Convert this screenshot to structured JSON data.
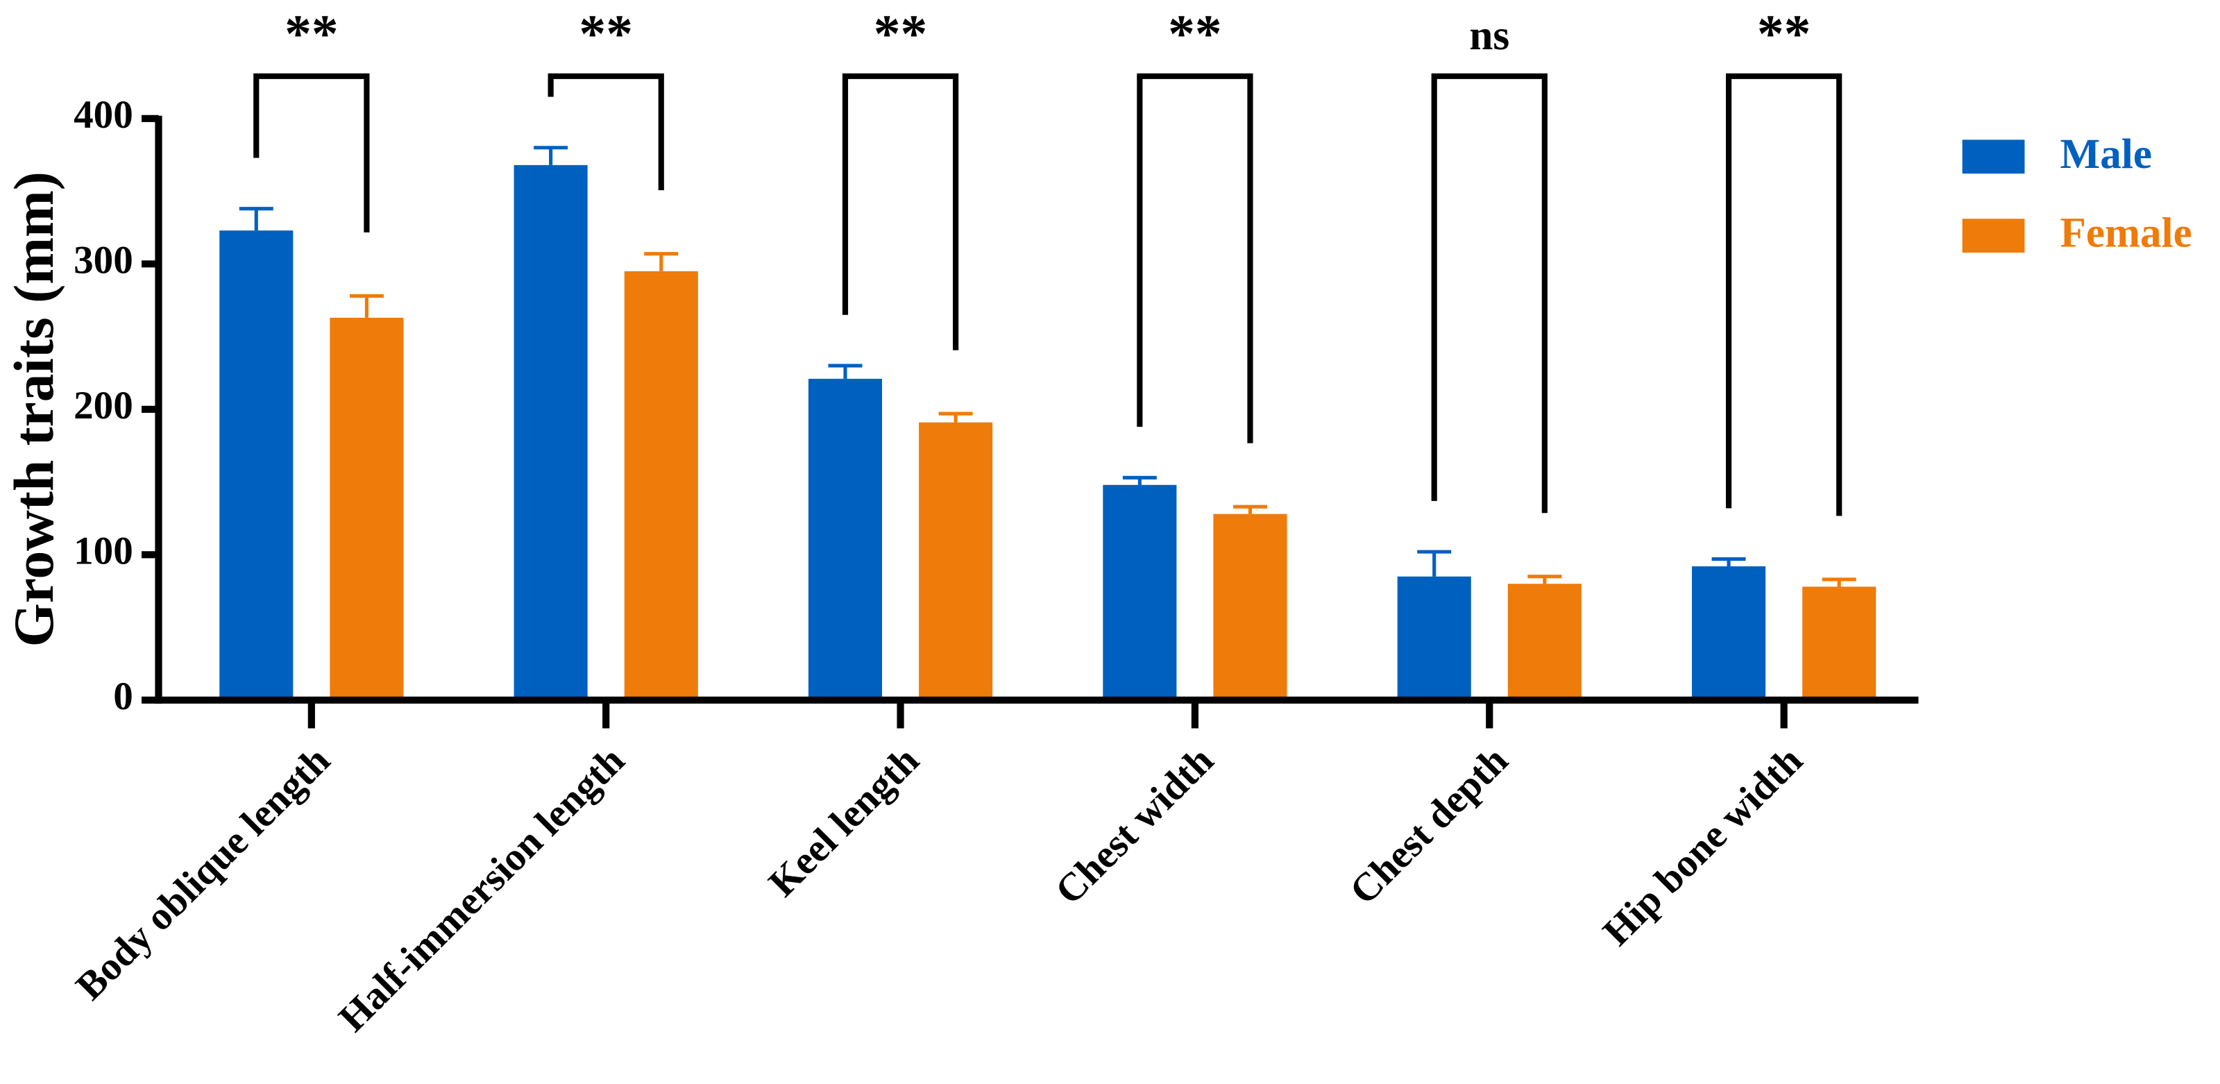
{
  "chart_data": {
    "type": "bar",
    "y_label": "Growth traits (mm)",
    "categories": [
      "Body oblique length",
      "Half-immersion length",
      "Keel length",
      "Chest width",
      "Chest depth",
      "Hip bone width"
    ],
    "series": [
      {
        "name": "Male",
        "color": "#0060bf",
        "values": [
          323,
          368,
          221,
          148,
          85,
          92
        ],
        "errors": [
          15,
          12,
          9,
          5,
          17,
          5
        ]
      },
      {
        "name": "Female",
        "color": "#ef7b0a",
        "values": [
          263,
          295,
          191,
          128,
          80,
          78
        ],
        "errors": [
          15,
          12,
          6,
          5,
          5,
          5
        ]
      }
    ],
    "significance": [
      "**",
      "**",
      "**",
      "**",
      "ns",
      "**"
    ],
    "ylim": [
      0,
      400
    ],
    "yticks": [
      0,
      100,
      200,
      300,
      400
    ],
    "legend": "top-right"
  }
}
